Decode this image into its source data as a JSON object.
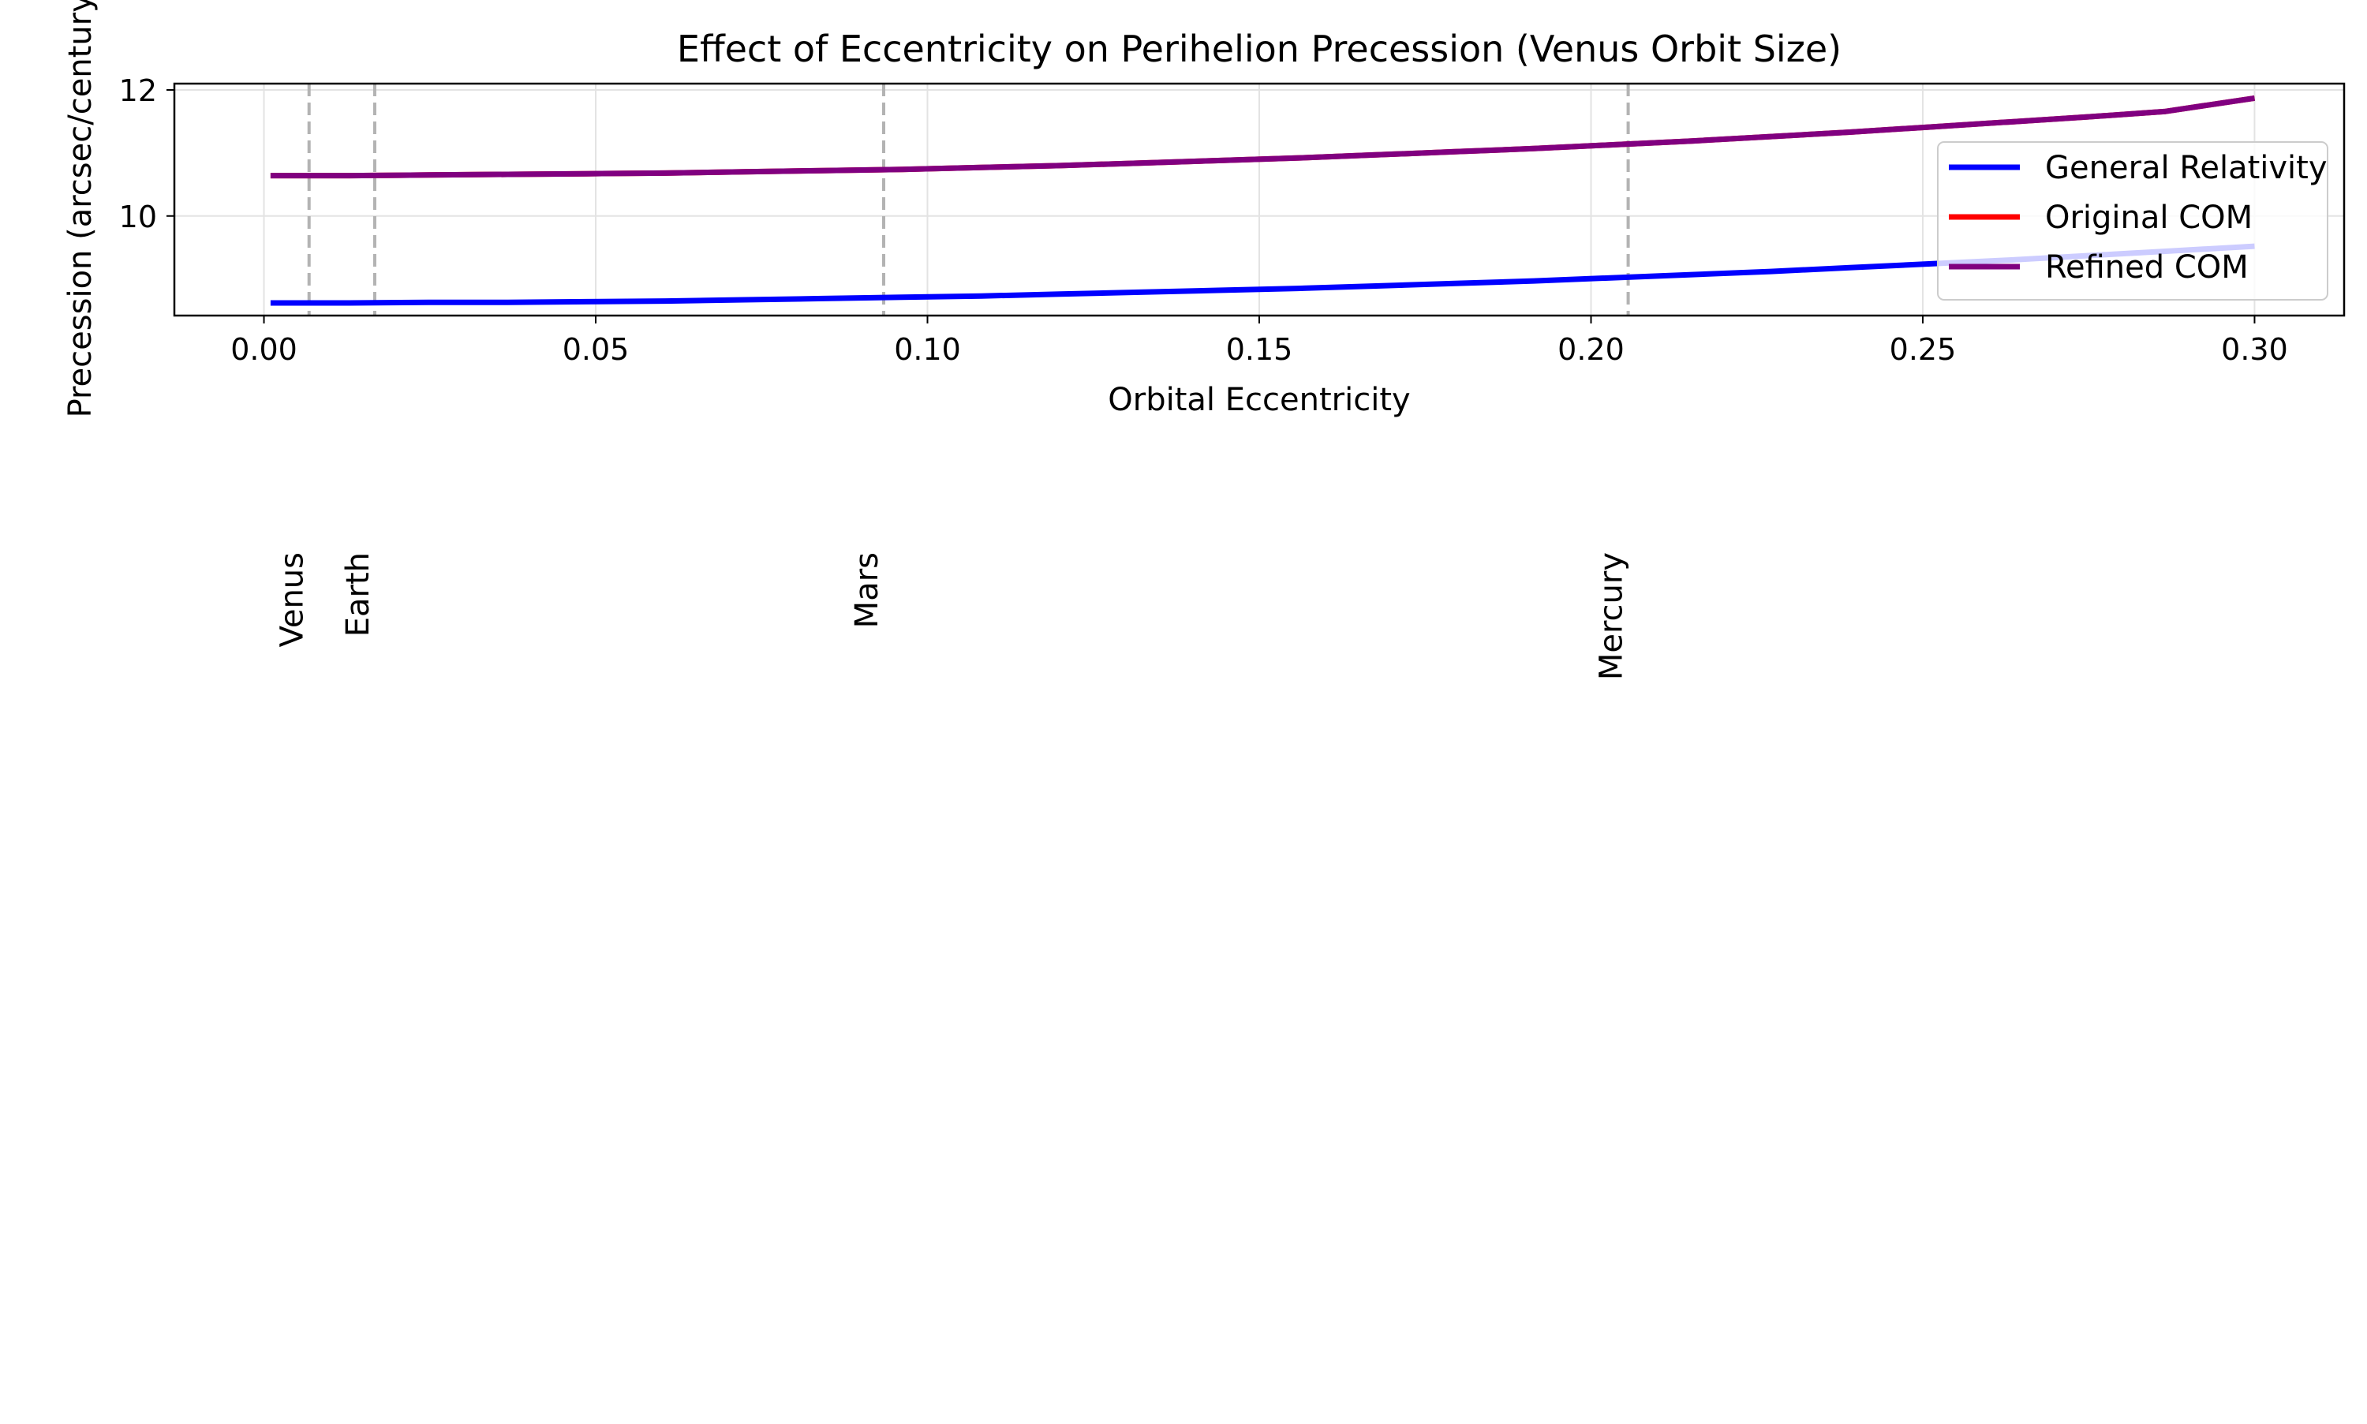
{
  "chart_data": {
    "type": "line",
    "title": "Effect of Eccentricity on Perihelion Precession (Venus Orbit Size)",
    "xlabel": "Orbital Eccentricity",
    "ylabel": "Precession (arcsec/century)",
    "xlim": [
      -0.0135,
      0.3135
    ],
    "ylim": [
      8.42,
      12.1
    ],
    "xticks": [
      0.0,
      0.05,
      0.1,
      0.15,
      0.2,
      0.25,
      0.3
    ],
    "xtick_labels": [
      "0.00",
      "0.05",
      "0.10",
      "0.15",
      "0.20",
      "0.25",
      "0.30"
    ],
    "yticks": [
      10,
      12
    ],
    "ytick_labels": [
      "10",
      "12"
    ],
    "grid": true,
    "legend_position": "right",
    "x": [
      0.001,
      0.0129,
      0.0248,
      0.0367,
      0.0486,
      0.0605,
      0.0724,
      0.0843,
      0.0962,
      0.1081,
      0.12,
      0.1319,
      0.1438,
      0.1557,
      0.1676,
      0.1795,
      0.1914,
      0.2033,
      0.2152,
      0.2271,
      0.239,
      0.2509,
      0.2628,
      0.2747,
      0.2866,
      0.3
    ],
    "series": [
      {
        "name": "General Relativity",
        "color": "#0000ff",
        "values": [
          8.62,
          8.62,
          8.63,
          8.63,
          8.64,
          8.65,
          8.67,
          8.69,
          8.71,
          8.73,
          8.76,
          8.79,
          8.82,
          8.85,
          8.89,
          8.93,
          8.97,
          9.02,
          9.07,
          9.12,
          9.18,
          9.24,
          9.3,
          9.37,
          9.44,
          9.52
        ]
      },
      {
        "name": "Original COM",
        "color": "#ff0000",
        "values": [
          10.64,
          10.64,
          10.65,
          10.66,
          10.67,
          10.68,
          10.7,
          10.72,
          10.74,
          10.77,
          10.8,
          10.84,
          10.88,
          10.92,
          10.97,
          11.02,
          11.07,
          11.13,
          11.19,
          11.26,
          11.33,
          11.41,
          11.49,
          11.57,
          11.66,
          11.87
        ]
      },
      {
        "name": "Refined COM",
        "color": "#800080",
        "values": [
          10.64,
          10.64,
          10.65,
          10.66,
          10.67,
          10.68,
          10.7,
          10.72,
          10.74,
          10.77,
          10.8,
          10.84,
          10.88,
          10.92,
          10.97,
          11.02,
          11.07,
          11.13,
          11.19,
          11.26,
          11.33,
          11.41,
          11.49,
          11.57,
          11.66,
          11.87
        ]
      }
    ],
    "reference_lines": [
      {
        "label": "Venus",
        "x": 0.0068
      },
      {
        "label": "Earth",
        "x": 0.0167
      },
      {
        "label": "Mars",
        "x": 0.0934
      },
      {
        "label": "Mercury",
        "x": 0.2056
      }
    ]
  }
}
